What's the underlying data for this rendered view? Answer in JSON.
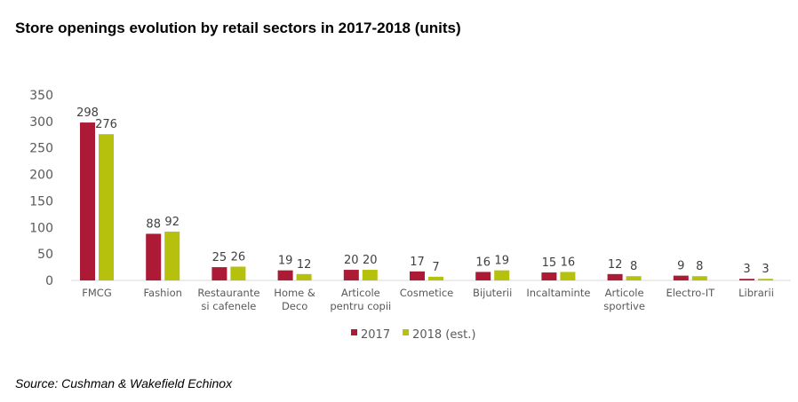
{
  "title": "Store openings evolution by retail sectors in 2017-2018 (units)",
  "source": "Source: Cushman & Wakefield Echinox",
  "chart_data": {
    "type": "bar",
    "categories": [
      [
        "FMCG"
      ],
      [
        "Fashion"
      ],
      [
        "Restaurante",
        "si cafenele"
      ],
      [
        "Home &",
        "Deco"
      ],
      [
        "Articole",
        "pentru copii"
      ],
      [
        "Cosmetice"
      ],
      [
        "Bijuterii"
      ],
      [
        "Incaltaminte"
      ],
      [
        "Articole",
        "sportive"
      ],
      [
        "Electro-IT"
      ],
      [
        "Librarii"
      ]
    ],
    "series": [
      {
        "name": "2017",
        "color": "#ad1a36",
        "values": [
          298,
          88,
          25,
          19,
          20,
          17,
          16,
          15,
          12,
          9,
          3
        ]
      },
      {
        "name": "2018 (est.)",
        "color": "#b5c10d",
        "values": [
          276,
          92,
          26,
          12,
          20,
          7,
          19,
          16,
          8,
          8,
          3
        ]
      }
    ],
    "ylim": [
      0,
      350
    ],
    "yticks": [
      0,
      50,
      100,
      150,
      200,
      250,
      300,
      350
    ],
    "grid": false,
    "legend_position": "bottom",
    "data_labels": true
  }
}
